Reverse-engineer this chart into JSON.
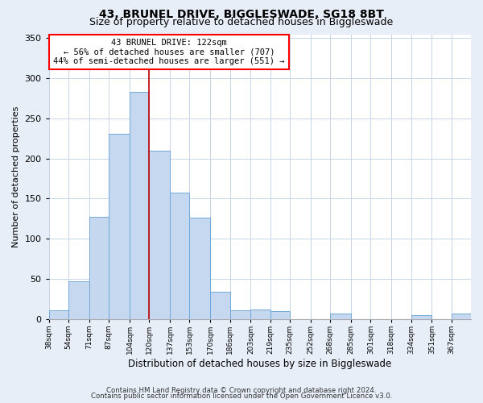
{
  "title1": "43, BRUNEL DRIVE, BIGGLESWADE, SG18 8BT",
  "title2": "Size of property relative to detached houses in Biggleswade",
  "xlabel": "Distribution of detached houses by size in Biggleswade",
  "ylabel": "Number of detached properties",
  "footer1": "Contains HM Land Registry data © Crown copyright and database right 2024.",
  "footer2": "Contains public sector information licensed under the Open Government Licence v3.0.",
  "bin_labels": [
    "38sqm",
    "54sqm",
    "71sqm",
    "87sqm",
    "104sqm",
    "120sqm",
    "137sqm",
    "153sqm",
    "170sqm",
    "186sqm",
    "203sqm",
    "219sqm",
    "235sqm",
    "252sqm",
    "268sqm",
    "285sqm",
    "301sqm",
    "318sqm",
    "334sqm",
    "351sqm",
    "367sqm"
  ],
  "bin_edges": [
    38,
    54,
    71,
    87,
    104,
    120,
    137,
    153,
    170,
    186,
    203,
    219,
    235,
    252,
    268,
    285,
    301,
    318,
    334,
    351,
    367
  ],
  "bar_heights": [
    11,
    47,
    127,
    231,
    283,
    210,
    157,
    126,
    34,
    11,
    12,
    10,
    0,
    0,
    7,
    0,
    0,
    0,
    5,
    0,
    7
  ],
  "bar_color": "#c5d8f0",
  "bar_edge_color": "#6fa8d8",
  "property_line_x": 120,
  "property_line_label": "43 BRUNEL DRIVE: 122sqm",
  "annotation_line1": "← 56% of detached houses are smaller (707)",
  "annotation_line2": "44% of semi-detached houses are larger (551) →",
  "annotation_box_color": "white",
  "annotation_box_edge": "red",
  "vline_color": "#c00000",
  "ylim": [
    0,
    355
  ],
  "yticks": [
    0,
    50,
    100,
    150,
    200,
    250,
    300,
    350
  ],
  "bg_color": "#e8eef8",
  "plot_bg_color": "white",
  "grid_color": "#c8d4e8"
}
